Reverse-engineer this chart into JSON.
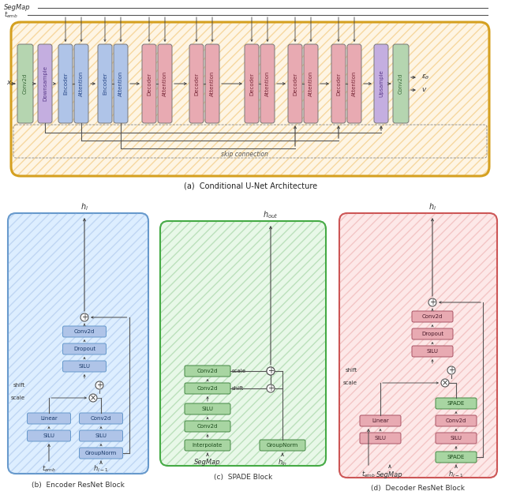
{
  "color_green_box": "#b5d5b0",
  "color_purple_box": "#c4aee0",
  "color_blue_box": "#afc4e8",
  "color_pink_box": "#e8aab2",
  "color_unet_bg": "#fef5e4",
  "color_unet_border": "#d4a020",
  "color_encoder_bg": "#ddeeff",
  "color_encoder_border": "#6699cc",
  "color_spade_bg": "#e8f8e8",
  "color_spade_border": "#44aa44",
  "color_decoder_bg": "#fde8e8",
  "color_decoder_border": "#cc5555",
  "color_spade_node": "#a8d5a2",
  "title_a": "(a)  Conditional U-Net Architecture",
  "title_b": "(b)  Encoder ResNet Block",
  "title_c": "(c)  SPADE Block",
  "title_d": "(d)  Decoder ResNet Block"
}
